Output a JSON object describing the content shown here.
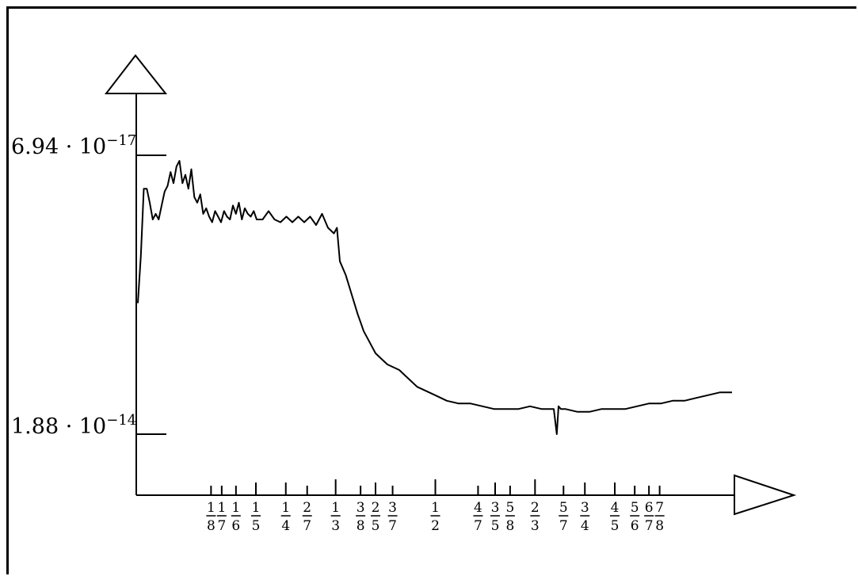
{
  "chart_data": {
    "type": "line",
    "y_tick_labels": [
      {
        "mantissa": "6.94 · 10",
        "exponent": "−17"
      },
      {
        "mantissa": "1.88 · 10",
        "exponent": "−14"
      }
    ],
    "x_tick_labels": [
      {
        "num": "1",
        "den": "8",
        "value": 0.125
      },
      {
        "num": "1",
        "den": "7",
        "value": 0.142857
      },
      {
        "num": "1",
        "den": "6",
        "value": 0.166667
      },
      {
        "num": "1",
        "den": "5",
        "value": 0.2
      },
      {
        "num": "1",
        "den": "4",
        "value": 0.25
      },
      {
        "num": "2",
        "den": "7",
        "value": 0.285714
      },
      {
        "num": "1",
        "den": "3",
        "value": 0.333333
      },
      {
        "num": "3",
        "den": "8",
        "value": 0.375
      },
      {
        "num": "2",
        "den": "5",
        "value": 0.4
      },
      {
        "num": "3",
        "den": "7",
        "value": 0.428571
      },
      {
        "num": "1",
        "den": "2",
        "value": 0.5
      },
      {
        "num": "4",
        "den": "7",
        "value": 0.571429
      },
      {
        "num": "3",
        "den": "5",
        "value": 0.6
      },
      {
        "num": "5",
        "den": "8",
        "value": 0.625
      },
      {
        "num": "2",
        "den": "3",
        "value": 0.666667
      },
      {
        "num": "5",
        "den": "7",
        "value": 0.714286
      },
      {
        "num": "3",
        "den": "4",
        "value": 0.75
      },
      {
        "num": "4",
        "den": "5",
        "value": 0.8
      },
      {
        "num": "5",
        "den": "6",
        "value": 0.833333
      },
      {
        "num": "6",
        "den": "7",
        "value": 0.857143
      },
      {
        "num": "7",
        "den": "8",
        "value": 0.875
      }
    ],
    "xlim": [
      0,
      1
    ],
    "ylim_norm": [
      0,
      1
    ],
    "series": [
      {
        "x": [
          0.0,
          0.005,
          0.01,
          0.015,
          0.02,
          0.025,
          0.03,
          0.035,
          0.04,
          0.045,
          0.05,
          0.055,
          0.06,
          0.065,
          0.07,
          0.075,
          0.08,
          0.085,
          0.09,
          0.095,
          0.1,
          0.105,
          0.11,
          0.115,
          0.12,
          0.125,
          0.13,
          0.135,
          0.14,
          0.145,
          0.15,
          0.155,
          0.16,
          0.165,
          0.17,
          0.175,
          0.18,
          0.185,
          0.19,
          0.195,
          0.2,
          0.21,
          0.22,
          0.23,
          0.24,
          0.25,
          0.26,
          0.27,
          0.28,
          0.29,
          0.3,
          0.31,
          0.32,
          0.33,
          0.335,
          0.34,
          0.35,
          0.36,
          0.37,
          0.375,
          0.38,
          0.39,
          0.4,
          0.41,
          0.42,
          0.43,
          0.44,
          0.45,
          0.46,
          0.47,
          0.48,
          0.49,
          0.5,
          0.52,
          0.54,
          0.56,
          0.58,
          0.6,
          0.62,
          0.64,
          0.66,
          0.68,
          0.7,
          0.705,
          0.708,
          0.712,
          0.72,
          0.74,
          0.76,
          0.78,
          0.8,
          0.82,
          0.84,
          0.86,
          0.88,
          0.9,
          0.92,
          0.94,
          0.96,
          0.98,
          1.0
        ],
        "y": [
          0.47,
          0.64,
          0.88,
          0.88,
          0.83,
          0.77,
          0.79,
          0.77,
          0.82,
          0.87,
          0.89,
          0.94,
          0.9,
          0.96,
          0.98,
          0.9,
          0.93,
          0.88,
          0.95,
          0.85,
          0.83,
          0.86,
          0.79,
          0.81,
          0.78,
          0.76,
          0.8,
          0.78,
          0.76,
          0.8,
          0.78,
          0.77,
          0.82,
          0.79,
          0.83,
          0.77,
          0.81,
          0.79,
          0.78,
          0.8,
          0.77,
          0.77,
          0.8,
          0.77,
          0.76,
          0.78,
          0.76,
          0.78,
          0.76,
          0.78,
          0.75,
          0.79,
          0.74,
          0.72,
          0.74,
          0.62,
          0.57,
          0.5,
          0.43,
          0.4,
          0.37,
          0.33,
          0.29,
          0.27,
          0.25,
          0.24,
          0.23,
          0.21,
          0.19,
          0.17,
          0.16,
          0.15,
          0.14,
          0.12,
          0.11,
          0.11,
          0.1,
          0.09,
          0.09,
          0.09,
          0.1,
          0.09,
          0.09,
          0.0,
          0.1,
          0.09,
          0.09,
          0.08,
          0.08,
          0.09,
          0.09,
          0.09,
          0.1,
          0.11,
          0.11,
          0.12,
          0.12,
          0.13,
          0.14,
          0.15,
          0.15
        ]
      }
    ]
  }
}
